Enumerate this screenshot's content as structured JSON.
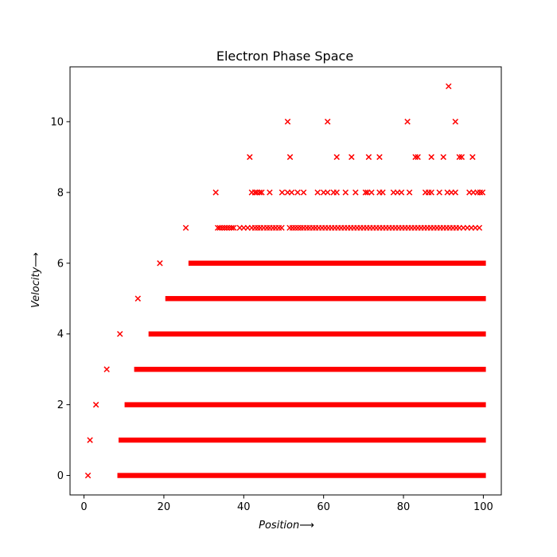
{
  "chart_data": {
    "type": "scatter",
    "title": "Electron Phase Space",
    "xlabel": "Position",
    "ylabel": "Velocity",
    "axis_arrow": "⟶",
    "xlim": [
      -3.5,
      104.5
    ],
    "ylim": [
      -0.55,
      11.55
    ],
    "xticks": [
      0,
      20,
      40,
      60,
      80,
      100
    ],
    "yticks": [
      0,
      2,
      4,
      6,
      8,
      10
    ],
    "marker": "x",
    "color": "#ff0000",
    "grid": false,
    "bands": [
      {
        "velocity": 0,
        "x_start": 9,
        "x_end": 100
      },
      {
        "velocity": 1,
        "x_start": 9.3,
        "x_end": 100
      },
      {
        "velocity": 2,
        "x_start": 10.8,
        "x_end": 100
      },
      {
        "velocity": 3,
        "x_start": 13.2,
        "x_end": 100
      },
      {
        "velocity": 4,
        "x_start": 16.8,
        "x_end": 100
      },
      {
        "velocity": 5,
        "x_start": 21,
        "x_end": 100
      },
      {
        "velocity": 6,
        "x_start": 26.8,
        "x_end": 100
      }
    ],
    "series": [
      {
        "values": [
          {
            "x": 1.0,
            "y": 0
          },
          {
            "x": 1.5,
            "y": 1
          },
          {
            "x": 3.0,
            "y": 2
          },
          {
            "x": 5.7,
            "y": 3
          },
          {
            "x": 9.0,
            "y": 4
          },
          {
            "x": 13.5,
            "y": 5
          },
          {
            "x": 19.0,
            "y": 6
          },
          {
            "x": 25.5,
            "y": 7
          },
          {
            "x": 33.0,
            "y": 8
          },
          {
            "x": 41.5,
            "y": 9
          },
          {
            "x": 51.0,
            "y": 10
          },
          {
            "x": 91.3,
            "y": 11
          },
          {
            "x": 61.0,
            "y": 10
          },
          {
            "x": 81.0,
            "y": 10
          },
          {
            "x": 93.0,
            "y": 10
          },
          {
            "x": 51.6,
            "y": 9
          },
          {
            "x": 63.3,
            "y": 9
          },
          {
            "x": 67.0,
            "y": 9
          },
          {
            "x": 71.3,
            "y": 9
          },
          {
            "x": 74.0,
            "y": 9
          },
          {
            "x": 83.0,
            "y": 9
          },
          {
            "x": 83.6,
            "y": 9
          },
          {
            "x": 87.0,
            "y": 9
          },
          {
            "x": 90.0,
            "y": 9
          },
          {
            "x": 94.0,
            "y": 9
          },
          {
            "x": 94.6,
            "y": 9
          },
          {
            "x": 97.3,
            "y": 9
          },
          {
            "x": 42.0,
            "y": 8
          },
          {
            "x": 42.8,
            "y": 8
          },
          {
            "x": 43.3,
            "y": 8
          },
          {
            "x": 44.0,
            "y": 8
          },
          {
            "x": 44.5,
            "y": 8
          },
          {
            "x": 46.5,
            "y": 8
          },
          {
            "x": 49.6,
            "y": 8
          },
          {
            "x": 51.0,
            "y": 8
          },
          {
            "x": 52.0,
            "y": 8
          },
          {
            "x": 53.5,
            "y": 8
          },
          {
            "x": 55.0,
            "y": 8
          },
          {
            "x": 58.5,
            "y": 8
          },
          {
            "x": 60.0,
            "y": 8
          },
          {
            "x": 61.0,
            "y": 8
          },
          {
            "x": 62.5,
            "y": 8
          },
          {
            "x": 63.3,
            "y": 8
          },
          {
            "x": 65.5,
            "y": 8
          },
          {
            "x": 68.0,
            "y": 8
          },
          {
            "x": 70.5,
            "y": 8
          },
          {
            "x": 71.0,
            "y": 8
          },
          {
            "x": 72.0,
            "y": 8
          },
          {
            "x": 74.0,
            "y": 8
          },
          {
            "x": 74.8,
            "y": 8
          },
          {
            "x": 77.5,
            "y": 8
          },
          {
            "x": 78.5,
            "y": 8
          },
          {
            "x": 79.5,
            "y": 8
          },
          {
            "x": 81.5,
            "y": 8
          },
          {
            "x": 85.5,
            "y": 8
          },
          {
            "x": 86.3,
            "y": 8
          },
          {
            "x": 87.0,
            "y": 8
          },
          {
            "x": 89.0,
            "y": 8
          },
          {
            "x": 91.0,
            "y": 8
          },
          {
            "x": 92.0,
            "y": 8
          },
          {
            "x": 93.0,
            "y": 8
          },
          {
            "x": 96.5,
            "y": 8
          },
          {
            "x": 97.5,
            "y": 8
          },
          {
            "x": 98.5,
            "y": 8
          },
          {
            "x": 99.2,
            "y": 8
          },
          {
            "x": 99.8,
            "y": 8
          },
          {
            "x": 33.5,
            "y": 7
          },
          {
            "x": 34.0,
            "y": 7
          },
          {
            "x": 34.6,
            "y": 7
          },
          {
            "x": 35.2,
            "y": 7
          },
          {
            "x": 35.8,
            "y": 7
          },
          {
            "x": 36.4,
            "y": 7
          },
          {
            "x": 37.0,
            "y": 7
          },
          {
            "x": 37.5,
            "y": 7
          },
          {
            "x": 39.0,
            "y": 7
          },
          {
            "x": 40.0,
            "y": 7
          },
          {
            "x": 41.0,
            "y": 7
          },
          {
            "x": 42.0,
            "y": 7
          },
          {
            "x": 42.8,
            "y": 7
          },
          {
            "x": 43.5,
            "y": 7
          },
          {
            "x": 44.2,
            "y": 7
          },
          {
            "x": 45.0,
            "y": 7
          },
          {
            "x": 45.8,
            "y": 7
          },
          {
            "x": 46.5,
            "y": 7
          },
          {
            "x": 47.3,
            "y": 7
          },
          {
            "x": 48.0,
            "y": 7
          },
          {
            "x": 48.8,
            "y": 7
          },
          {
            "x": 49.5,
            "y": 7
          },
          {
            "x": 51.5,
            "y": 7
          },
          {
            "x": 52.2,
            "y": 7
          },
          {
            "x": 52.9,
            "y": 7
          },
          {
            "x": 53.6,
            "y": 7
          },
          {
            "x": 54.3,
            "y": 7
          },
          {
            "x": 55.0,
            "y": 7
          },
          {
            "x": 55.8,
            "y": 7
          },
          {
            "x": 56.5,
            "y": 7
          },
          {
            "x": 57.3,
            "y": 7
          },
          {
            "x": 58.0,
            "y": 7
          },
          {
            "x": 58.8,
            "y": 7
          },
          {
            "x": 59.6,
            "y": 7
          },
          {
            "x": 60.4,
            "y": 7
          },
          {
            "x": 61.2,
            "y": 7
          },
          {
            "x": 62.0,
            "y": 7
          },
          {
            "x": 62.8,
            "y": 7
          },
          {
            "x": 63.6,
            "y": 7
          },
          {
            "x": 64.4,
            "y": 7
          },
          {
            "x": 65.2,
            "y": 7
          },
          {
            "x": 66.0,
            "y": 7
          },
          {
            "x": 66.8,
            "y": 7
          },
          {
            "x": 67.6,
            "y": 7
          },
          {
            "x": 68.4,
            "y": 7
          },
          {
            "x": 69.2,
            "y": 7
          },
          {
            "x": 70.0,
            "y": 7
          },
          {
            "x": 70.8,
            "y": 7
          },
          {
            "x": 71.6,
            "y": 7
          },
          {
            "x": 72.4,
            "y": 7
          },
          {
            "x": 73.2,
            "y": 7
          },
          {
            "x": 74.0,
            "y": 7
          },
          {
            "x": 74.8,
            "y": 7
          },
          {
            "x": 75.6,
            "y": 7
          },
          {
            "x": 76.4,
            "y": 7
          },
          {
            "x": 77.2,
            "y": 7
          },
          {
            "x": 78.0,
            "y": 7
          },
          {
            "x": 78.8,
            "y": 7
          },
          {
            "x": 79.6,
            "y": 7
          },
          {
            "x": 80.4,
            "y": 7
          },
          {
            "x": 81.2,
            "y": 7
          },
          {
            "x": 82.0,
            "y": 7
          },
          {
            "x": 82.8,
            "y": 7
          },
          {
            "x": 83.6,
            "y": 7
          },
          {
            "x": 84.4,
            "y": 7
          },
          {
            "x": 85.2,
            "y": 7
          },
          {
            "x": 86.0,
            "y": 7
          },
          {
            "x": 86.8,
            "y": 7
          },
          {
            "x": 87.6,
            "y": 7
          },
          {
            "x": 88.4,
            "y": 7
          },
          {
            "x": 89.2,
            "y": 7
          },
          {
            "x": 90.0,
            "y": 7
          },
          {
            "x": 90.8,
            "y": 7
          },
          {
            "x": 91.6,
            "y": 7
          },
          {
            "x": 92.4,
            "y": 7
          },
          {
            "x": 93.2,
            "y": 7
          },
          {
            "x": 94.0,
            "y": 7
          },
          {
            "x": 95.0,
            "y": 7
          },
          {
            "x": 96.0,
            "y": 7
          },
          {
            "x": 97.0,
            "y": 7
          },
          {
            "x": 98.0,
            "y": 7
          },
          {
            "x": 99.0,
            "y": 7
          }
        ]
      }
    ]
  }
}
